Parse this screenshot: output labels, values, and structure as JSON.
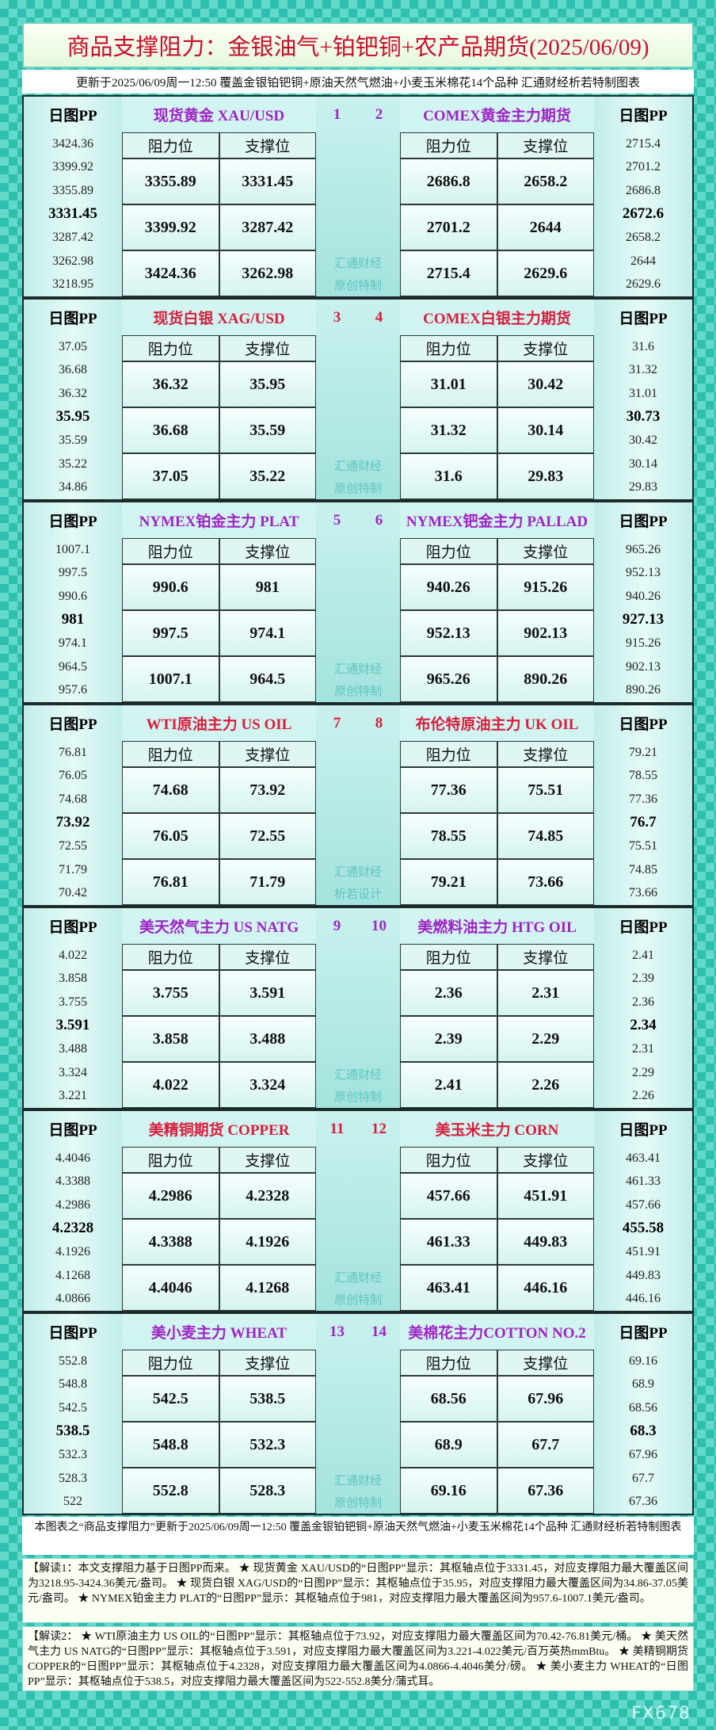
{
  "header": {
    "title": "商品支撑阻力：金银油气+铂钯铜+农产品期货(2025/06/09)",
    "subtitle": "更新于2025/06/09周一12:50 覆盖金银铂钯铜+原油天然气燃油+小麦玉米棉花14个品种 汇通财经析若特制图表"
  },
  "panels": [
    {
      "left": {
        "pp_label": "日图PP",
        "name": "现货黄金 XAU/USD",
        "pp": [
          3424.36,
          3399.92,
          3355.89,
          3331.45,
          3287.42,
          3262.98,
          3218.95
        ],
        "table_header": [
          "阻力位",
          "支撑位"
        ],
        "rows": [
          [
            3355.89,
            3331.45
          ],
          [
            3399.92,
            3287.42
          ],
          [
            3424.36,
            3262.98
          ]
        ]
      },
      "numbers": [
        1,
        2
      ],
      "watermark": [
        "汇通财经",
        "原创特制"
      ],
      "right": {
        "pp_label": "日图PP",
        "name": "COMEX黄金主力期货",
        "pp": [
          2715.4,
          2701.2,
          2686.8,
          2672.6,
          2658.2,
          2644,
          2629.6
        ],
        "table_header": [
          "阻力位",
          "支撑位"
        ],
        "rows": [
          [
            2686.8,
            2658.2
          ],
          [
            2701.2,
            2644
          ],
          [
            2715.4,
            2629.6
          ]
        ]
      }
    },
    {
      "left": {
        "pp_label": "日图PP",
        "name": "现货白银 XAG/USD",
        "pp": [
          37.05,
          36.68,
          36.32,
          35.95,
          35.59,
          35.22,
          34.86
        ],
        "table_header": [
          "阻力位",
          "支撑位"
        ],
        "rows": [
          [
            36.32,
            35.95
          ],
          [
            36.68,
            35.59
          ],
          [
            37.05,
            35.22
          ]
        ]
      },
      "numbers": [
        3,
        4
      ],
      "watermark": [
        "汇通财经",
        "原创特制"
      ],
      "right": {
        "pp_label": "日图PP",
        "name": "COMEX白银主力期货",
        "pp": [
          31.6,
          31.32,
          31.01,
          30.73,
          30.42,
          30.14,
          29.83
        ],
        "table_header": [
          "阻力位",
          "支撑位"
        ],
        "rows": [
          [
            31.01,
            30.42
          ],
          [
            31.32,
            30.14
          ],
          [
            31.6,
            29.83
          ]
        ]
      }
    },
    {
      "left": {
        "pp_label": "日图PP",
        "name": "NYMEX铂金主力 PLAT",
        "pp": [
          1007.1,
          997.5,
          990.6,
          981,
          974.1,
          964.5,
          957.6
        ],
        "table_header": [
          "阻力位",
          "支撑位"
        ],
        "rows": [
          [
            990.6,
            981
          ],
          [
            997.5,
            974.1
          ],
          [
            1007.1,
            964.5
          ]
        ]
      },
      "numbers": [
        5,
        6
      ],
      "watermark": [
        "汇通财经",
        "原创特制"
      ],
      "right": {
        "pp_label": "日图PP",
        "name": "NYMEX钯金主力 PALLAD",
        "pp": [
          965.26,
          952.13,
          940.26,
          927.13,
          915.26,
          902.13,
          890.26
        ],
        "table_header": [
          "阻力位",
          "支撑位"
        ],
        "rows": [
          [
            940.26,
            915.26
          ],
          [
            952.13,
            902.13
          ],
          [
            965.26,
            890.26
          ]
        ]
      }
    },
    {
      "left": {
        "pp_label": "日图PP",
        "name": "WTI原油主力 US OIL",
        "pp": [
          76.81,
          76.05,
          74.68,
          73.92,
          72.55,
          71.79,
          70.42
        ],
        "table_header": [
          "阻力位",
          "支撑位"
        ],
        "rows": [
          [
            74.68,
            73.92
          ],
          [
            76.05,
            72.55
          ],
          [
            76.81,
            71.79
          ]
        ]
      },
      "numbers": [
        7,
        8
      ],
      "watermark": [
        "汇通财经",
        "析若设计"
      ],
      "right": {
        "pp_label": "日图PP",
        "name": "布伦特原油主力 UK OIL",
        "pp": [
          79.21,
          78.55,
          77.36,
          76.7,
          75.51,
          74.85,
          73.66
        ],
        "table_header": [
          "阻力位",
          "支撑位"
        ],
        "rows": [
          [
            77.36,
            75.51
          ],
          [
            78.55,
            74.85
          ],
          [
            79.21,
            73.66
          ]
        ]
      }
    },
    {
      "left": {
        "pp_label": "日图PP",
        "name": "美天然气主力 US NATG",
        "pp": [
          4.022,
          3.858,
          3.755,
          3.591,
          3.488,
          3.324,
          3.221
        ],
        "table_header": [
          "阻力位",
          "支撑位"
        ],
        "rows": [
          [
            3.755,
            3.591
          ],
          [
            3.858,
            3.488
          ],
          [
            4.022,
            3.324
          ]
        ]
      },
      "numbers": [
        9,
        10
      ],
      "watermark": [
        "汇通财经",
        "原创特制"
      ],
      "right": {
        "pp_label": "日图PP",
        "name": "美燃料油主力 HTG OIL",
        "pp": [
          2.41,
          2.39,
          2.36,
          2.34,
          2.31,
          2.29,
          2.26
        ],
        "table_header": [
          "阻力位",
          "支撑位"
        ],
        "rows": [
          [
            2.36,
            2.31
          ],
          [
            2.39,
            2.29
          ],
          [
            2.41,
            2.26
          ]
        ]
      }
    },
    {
      "left": {
        "pp_label": "日图PP",
        "name": "美精铜期货 COPPER",
        "pp": [
          4.4046,
          4.3388,
          4.2986,
          4.2328,
          4.1926,
          4.1268,
          4.0866
        ],
        "table_header": [
          "阻力位",
          "支撑位"
        ],
        "rows": [
          [
            4.2986,
            4.2328
          ],
          [
            4.3388,
            4.1926
          ],
          [
            4.4046,
            4.1268
          ]
        ]
      },
      "numbers": [
        11,
        12
      ],
      "watermark": [
        "汇通财经",
        "原创特制"
      ],
      "right": {
        "pp_label": "日图PP",
        "name": "美玉米主力 CORN",
        "pp": [
          463.41,
          461.33,
          457.66,
          455.58,
          451.91,
          449.83,
          446.16
        ],
        "table_header": [
          "阻力位",
          "支撑位"
        ],
        "rows": [
          [
            457.66,
            451.91
          ],
          [
            461.33,
            449.83
          ],
          [
            463.41,
            446.16
          ]
        ]
      }
    },
    {
      "left": {
        "pp_label": "日图PP",
        "name": "美小麦主力 WHEAT",
        "pp": [
          552.8,
          548.8,
          542.5,
          538.5,
          532.3,
          528.3,
          522
        ],
        "table_header": [
          "阻力位",
          "支撑位"
        ],
        "rows": [
          [
            542.5,
            538.5
          ],
          [
            548.8,
            532.3
          ],
          [
            552.8,
            528.3
          ]
        ]
      },
      "numbers": [
        13,
        14
      ],
      "watermark": [
        "汇通财经",
        "原创特制"
      ],
      "right": {
        "pp_label": "日图PP",
        "name": "美棉花主力COTTON NO.2",
        "pp": [
          69.16,
          68.9,
          68.56,
          68.3,
          67.96,
          67.7,
          67.36
        ],
        "table_header": [
          "阻力位",
          "支撑位"
        ],
        "rows": [
          [
            68.56,
            67.96
          ],
          [
            68.9,
            67.7
          ],
          [
            69.16,
            67.36
          ]
        ]
      }
    }
  ],
  "footer": "本图表之“商品支撑阻力”更新于2025/06/09周一12:50 覆盖金银铂钯铜+原油天然气燃油+小麦玉米棉花14个品种 汇通财经析若特制图表",
  "notes": [
    "【解读1：本文支撑阻力基于日图PP而来。 ★ 现货黄金 XAU/USD的“日图PP”显示：其枢轴点位于3331.45，对应支撑阻力最大覆盖区间为3218.95-3424.36美元/盎司。 ★ 现货白银 XAG/USD的“日图PP”显示：其枢轴点位于35.95，对应支撑阻力最大覆盖区间为34.86-37.05美元/盎司。 ★ NYMEX铂金主力 PLAT的“日图PP”显示：其枢轴点位于981，对应支撑阻力最大覆盖区间为957.6-1007.1美元/盎司。",
    "【解读2： ★ WTI原油主力 US OIL的“日图PP”显示：其枢轴点位于73.92，对应支撑阻力最大覆盖区间为70.42-76.81美元/桶。 ★ 美天然气主力 US NATG的“日图PP”显示：其枢轴点位于3.591，对应支撑阻力最大覆盖区间为3.221-4.022美元/百万英热mmBtu。 ★ 美精铜期货 COPPER的“日图PP”显示：其枢轴点位于4.2328，对应支撑阻力最大覆盖区间为4.0866-4.4046美分/磅。 ★ 美小麦主力 WHEAT的“日图PP”显示：其枢轴点位于538.5，对应支撑阻力最大覆盖区间为522-552.8美分/蒲式耳。"
  ],
  "watermark": "FX678"
}
